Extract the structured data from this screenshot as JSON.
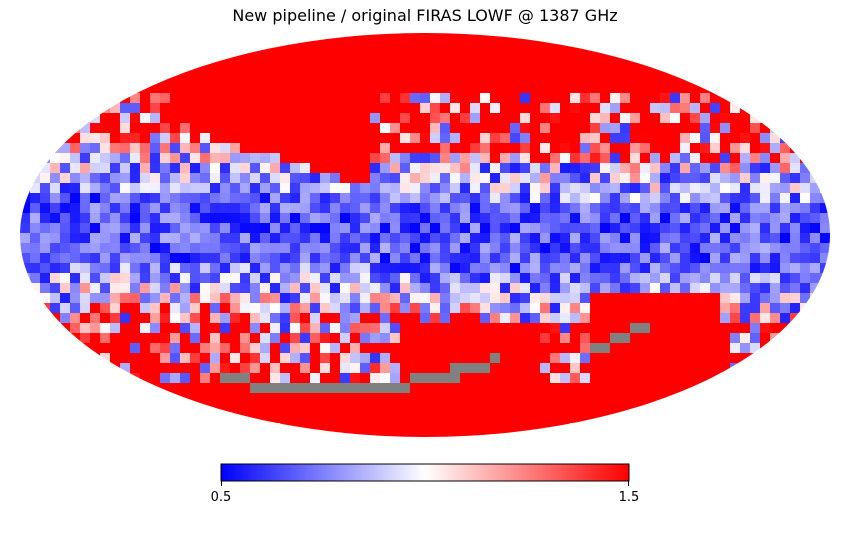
{
  "chart_data": {
    "type": "heatmap",
    "projection": "mollweide",
    "title": "New pipeline / original FIRAS LOWF @ 1387 GHz",
    "colormap": "bwr",
    "colorbar": {
      "orientation": "horizontal",
      "position": "bottom",
      "min": 0.5,
      "max": 1.5,
      "tick_labels": [
        "0.5",
        "1.5"
      ]
    },
    "colors": {
      "low": "#0000ff",
      "mid": "#ffffff",
      "high": "#ff0000",
      "no_data": "#808080"
    },
    "description_regions": {
      "galactic_plane": "low (blue, ~0.5-0.8)",
      "high_latitudes": "high (red, ~1.5)",
      "scan_stripes": "no data (grey)"
    }
  }
}
